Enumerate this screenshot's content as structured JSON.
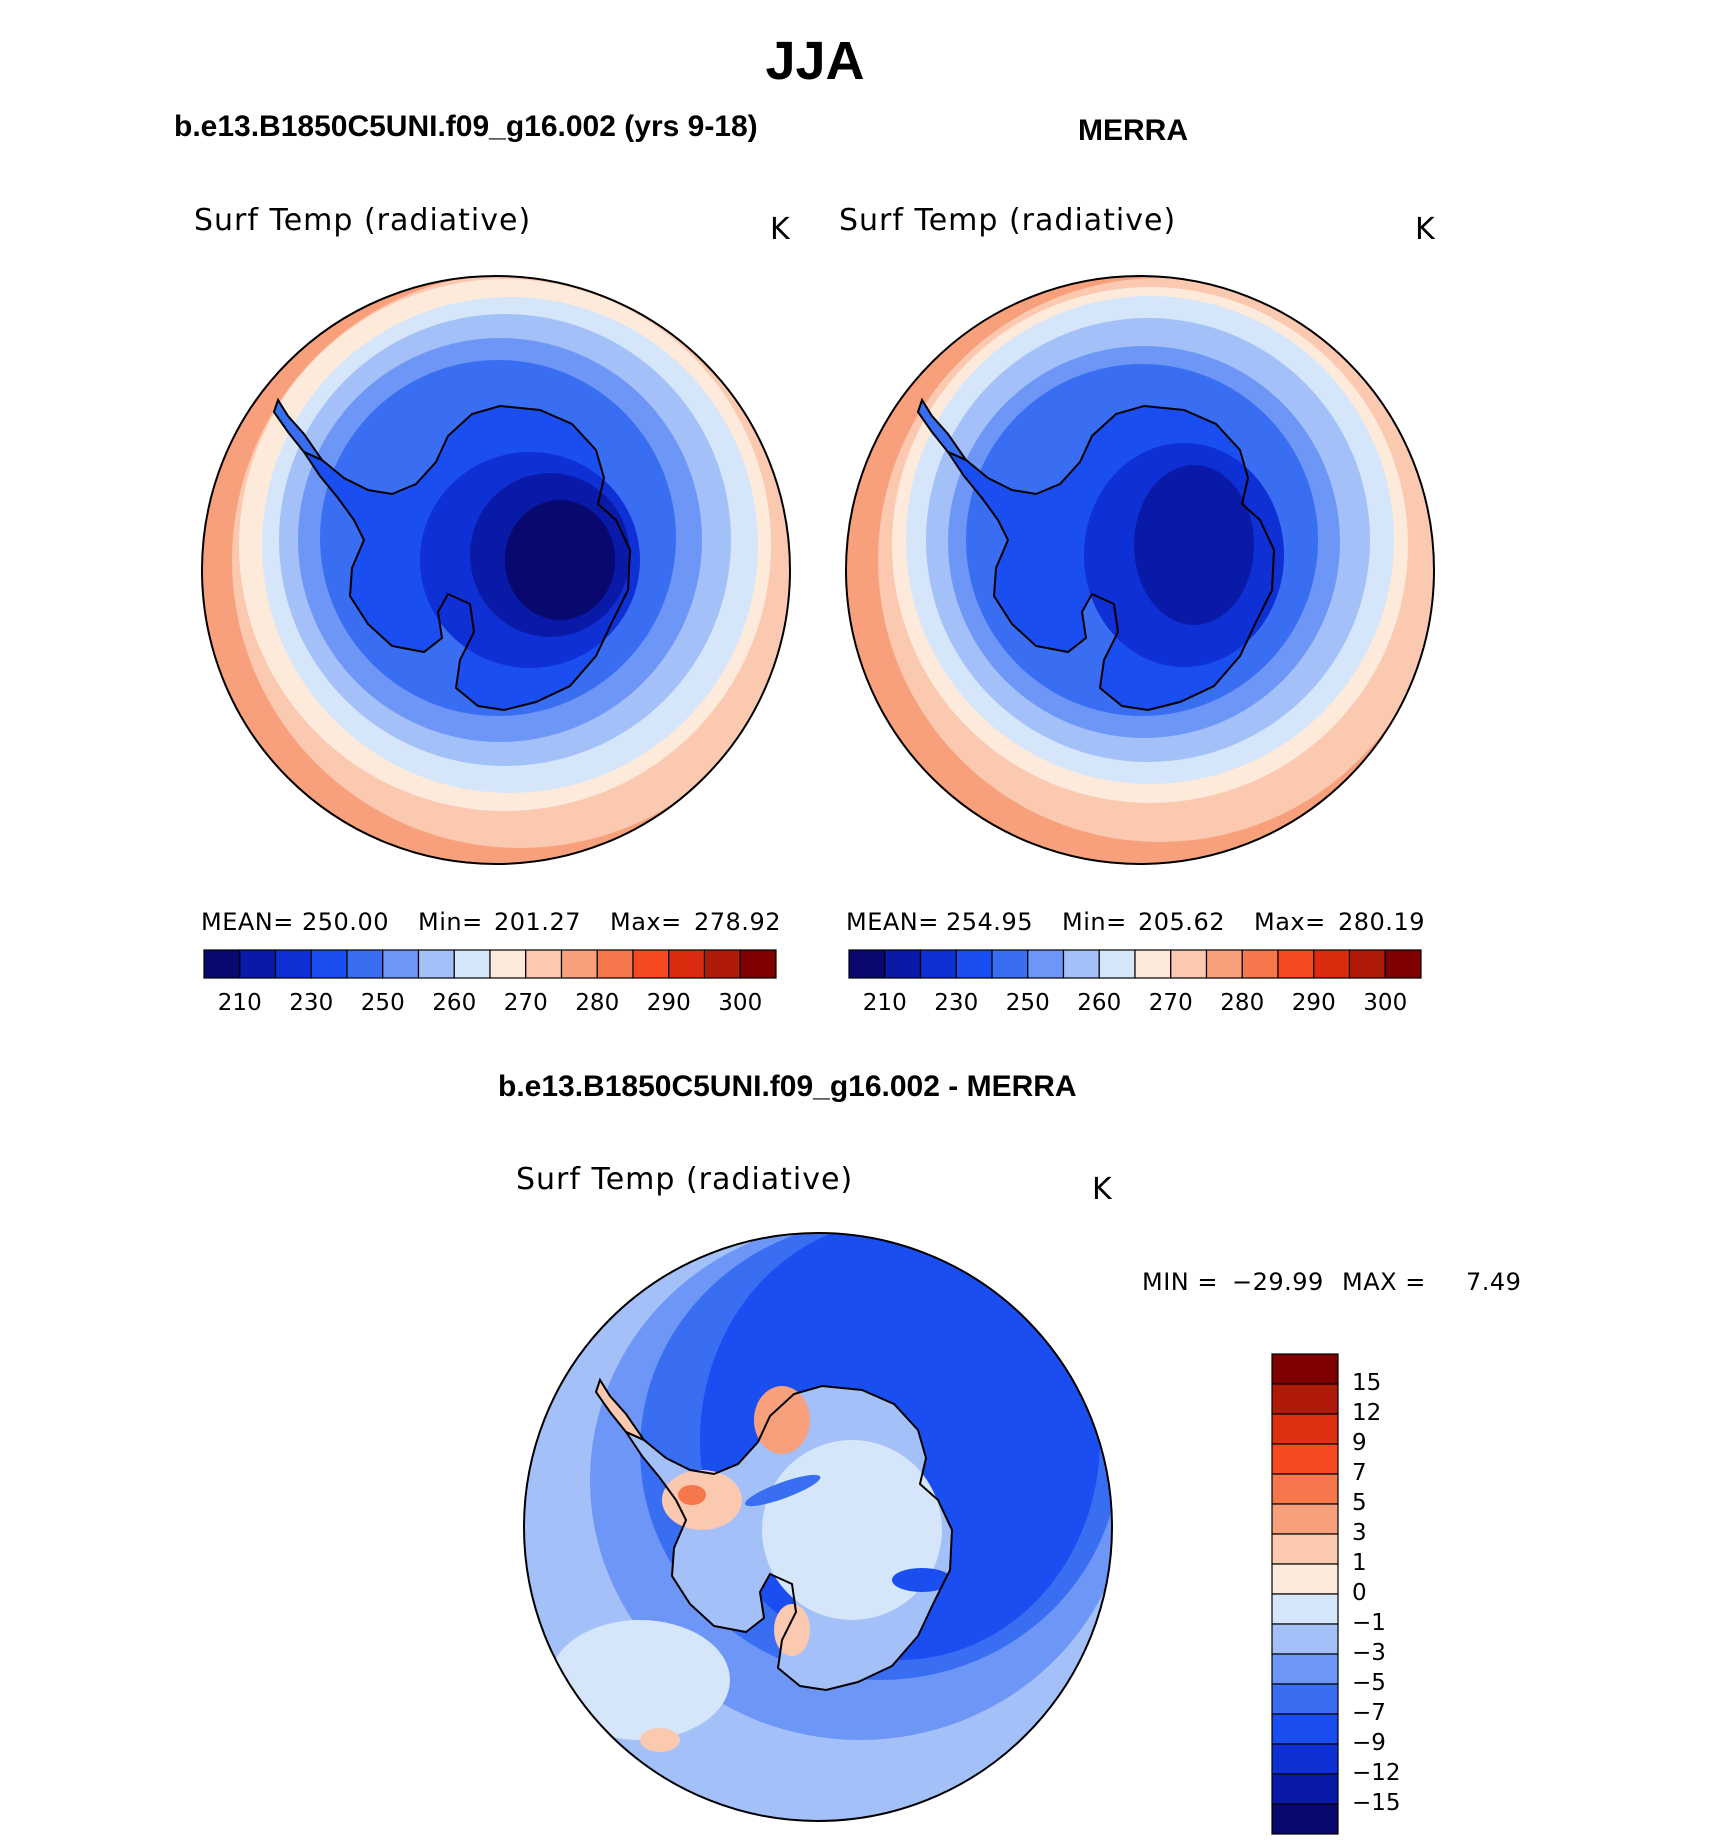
{
  "title": "JJA",
  "panels": [
    {
      "subtitle": "b.e13.B1850C5UNI.f09_g16.002 (yrs 9-18)",
      "variable": "Surf Temp (radiative)",
      "units": "K",
      "stats": {
        "mean_label": "MEAN=",
        "mean": "250.00",
        "min_label": "Min=",
        "min": "201.27",
        "max_label": "Max=",
        "max": "278.92"
      }
    },
    {
      "subtitle": "MERRA",
      "variable": "Surf Temp (radiative)",
      "units": "K",
      "stats": {
        "mean_label": "MEAN=",
        "mean": "254.95",
        "min_label": "Min=",
        "min": "205.62",
        "max_label": "Max=",
        "max": "280.19"
      }
    }
  ],
  "diff_panel": {
    "subtitle": "b.e13.B1850C5UNI.f09_g16.002 - MERRA",
    "variable": "Surf Temp (radiative)",
    "units": "K",
    "minmax": {
      "min_label": "MIN =",
      "min": "−29.99",
      "max_label": "MAX =",
      "max": "7.49"
    }
  },
  "colorbar_abs": {
    "colors": [
      "#08086e",
      "#0a1aa8",
      "#0e30d4",
      "#1a4ef0",
      "#3a6ef2",
      "#6d96f6",
      "#a3c0f8",
      "#d5e6fa",
      "#fdeadb",
      "#fbc8b0",
      "#f8a07c",
      "#f6774c",
      "#f54a22",
      "#dc2c10",
      "#b01a08",
      "#7e0000"
    ],
    "tick_labels": [
      "210",
      "230",
      "250",
      "260",
      "270",
      "280",
      "290",
      "300"
    ]
  },
  "colorbar_diff": {
    "colors": [
      "#7e0000",
      "#b01a08",
      "#dc3010",
      "#f54a22",
      "#f6774c",
      "#f8a07c",
      "#fbc8b0",
      "#fdeadb",
      "#d5e6fa",
      "#a3c0f8",
      "#6d96f6",
      "#3a6ef2",
      "#1a4ef0",
      "#0e30d4",
      "#0a1aa8",
      "#08086e"
    ],
    "tick_labels": [
      "15",
      "12",
      "9",
      "7",
      "5",
      "3",
      "1",
      "0",
      "−1",
      "−3",
      "−5",
      "−7",
      "−9",
      "−12",
      "−15"
    ]
  }
}
